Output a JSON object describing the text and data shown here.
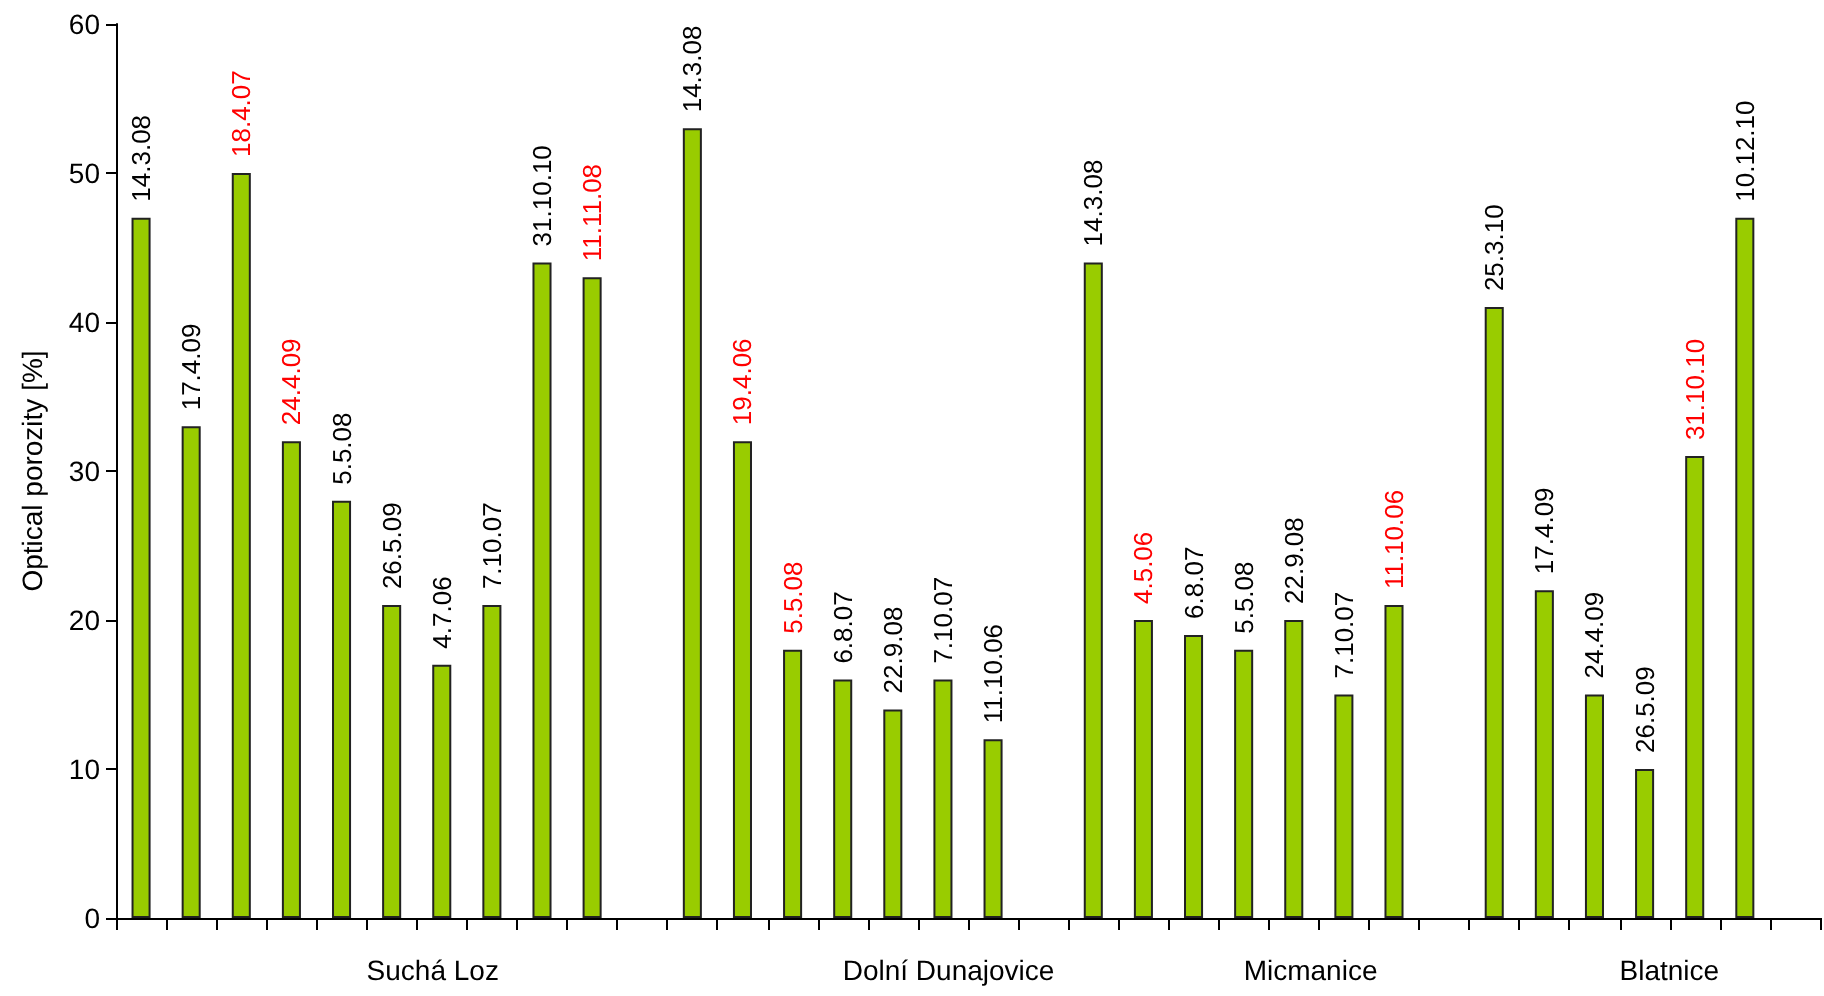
{
  "chart_data": {
    "type": "bar",
    "ylabel": "Optical porozity [%]",
    "categories": [
      "14.3.08",
      "17.4.09",
      "18.4.07",
      "24.4.09",
      "5.5.08",
      "26.5.09",
      "4.7.06",
      "7.10.07",
      "31.10.10",
      "11.11.08",
      null,
      "14.3.08",
      "19.4.06",
      "5.5.08",
      "6.8.07",
      "22.9.08",
      "7.10.07",
      "11.10.06",
      null,
      "14.3.08",
      "4.5.06",
      "6.8.07",
      "5.5.08",
      "22.9.08",
      "7.10.07",
      "11.10.06",
      null,
      "25.3.10",
      "17.4.09",
      "24.4.09",
      "26.5.09",
      "31.10.10",
      "10.12.10",
      null
    ],
    "series": [
      {
        "color": "#99cc00",
        "values": [
          47,
          33,
          null,
          null,
          28,
          21,
          17,
          21,
          44,
          null,
          null,
          53,
          null,
          null,
          16,
          14,
          16,
          12,
          null,
          44,
          null,
          19,
          18,
          20,
          15,
          null,
          null,
          41,
          22,
          15,
          10,
          null,
          47,
          null
        ]
      },
      {
        "color": "#99cc00",
        "values": [
          null,
          null,
          50,
          32,
          null,
          null,
          null,
          null,
          null,
          43,
          null,
          null,
          32,
          18,
          null,
          null,
          null,
          null,
          null,
          null,
          20,
          null,
          null,
          null,
          null,
          21,
          null,
          null,
          null,
          null,
          null,
          31,
          null,
          null
        ]
      }
    ],
    "ylim": [
      0,
      60
    ],
    "yticks": [
      0,
      10,
      20,
      30,
      40,
      50,
      60
    ],
    "annotations": [
      "Suchá Loz",
      "Dolní Dunajovice",
      "Micmanice",
      "Blatnice"
    ]
  }
}
